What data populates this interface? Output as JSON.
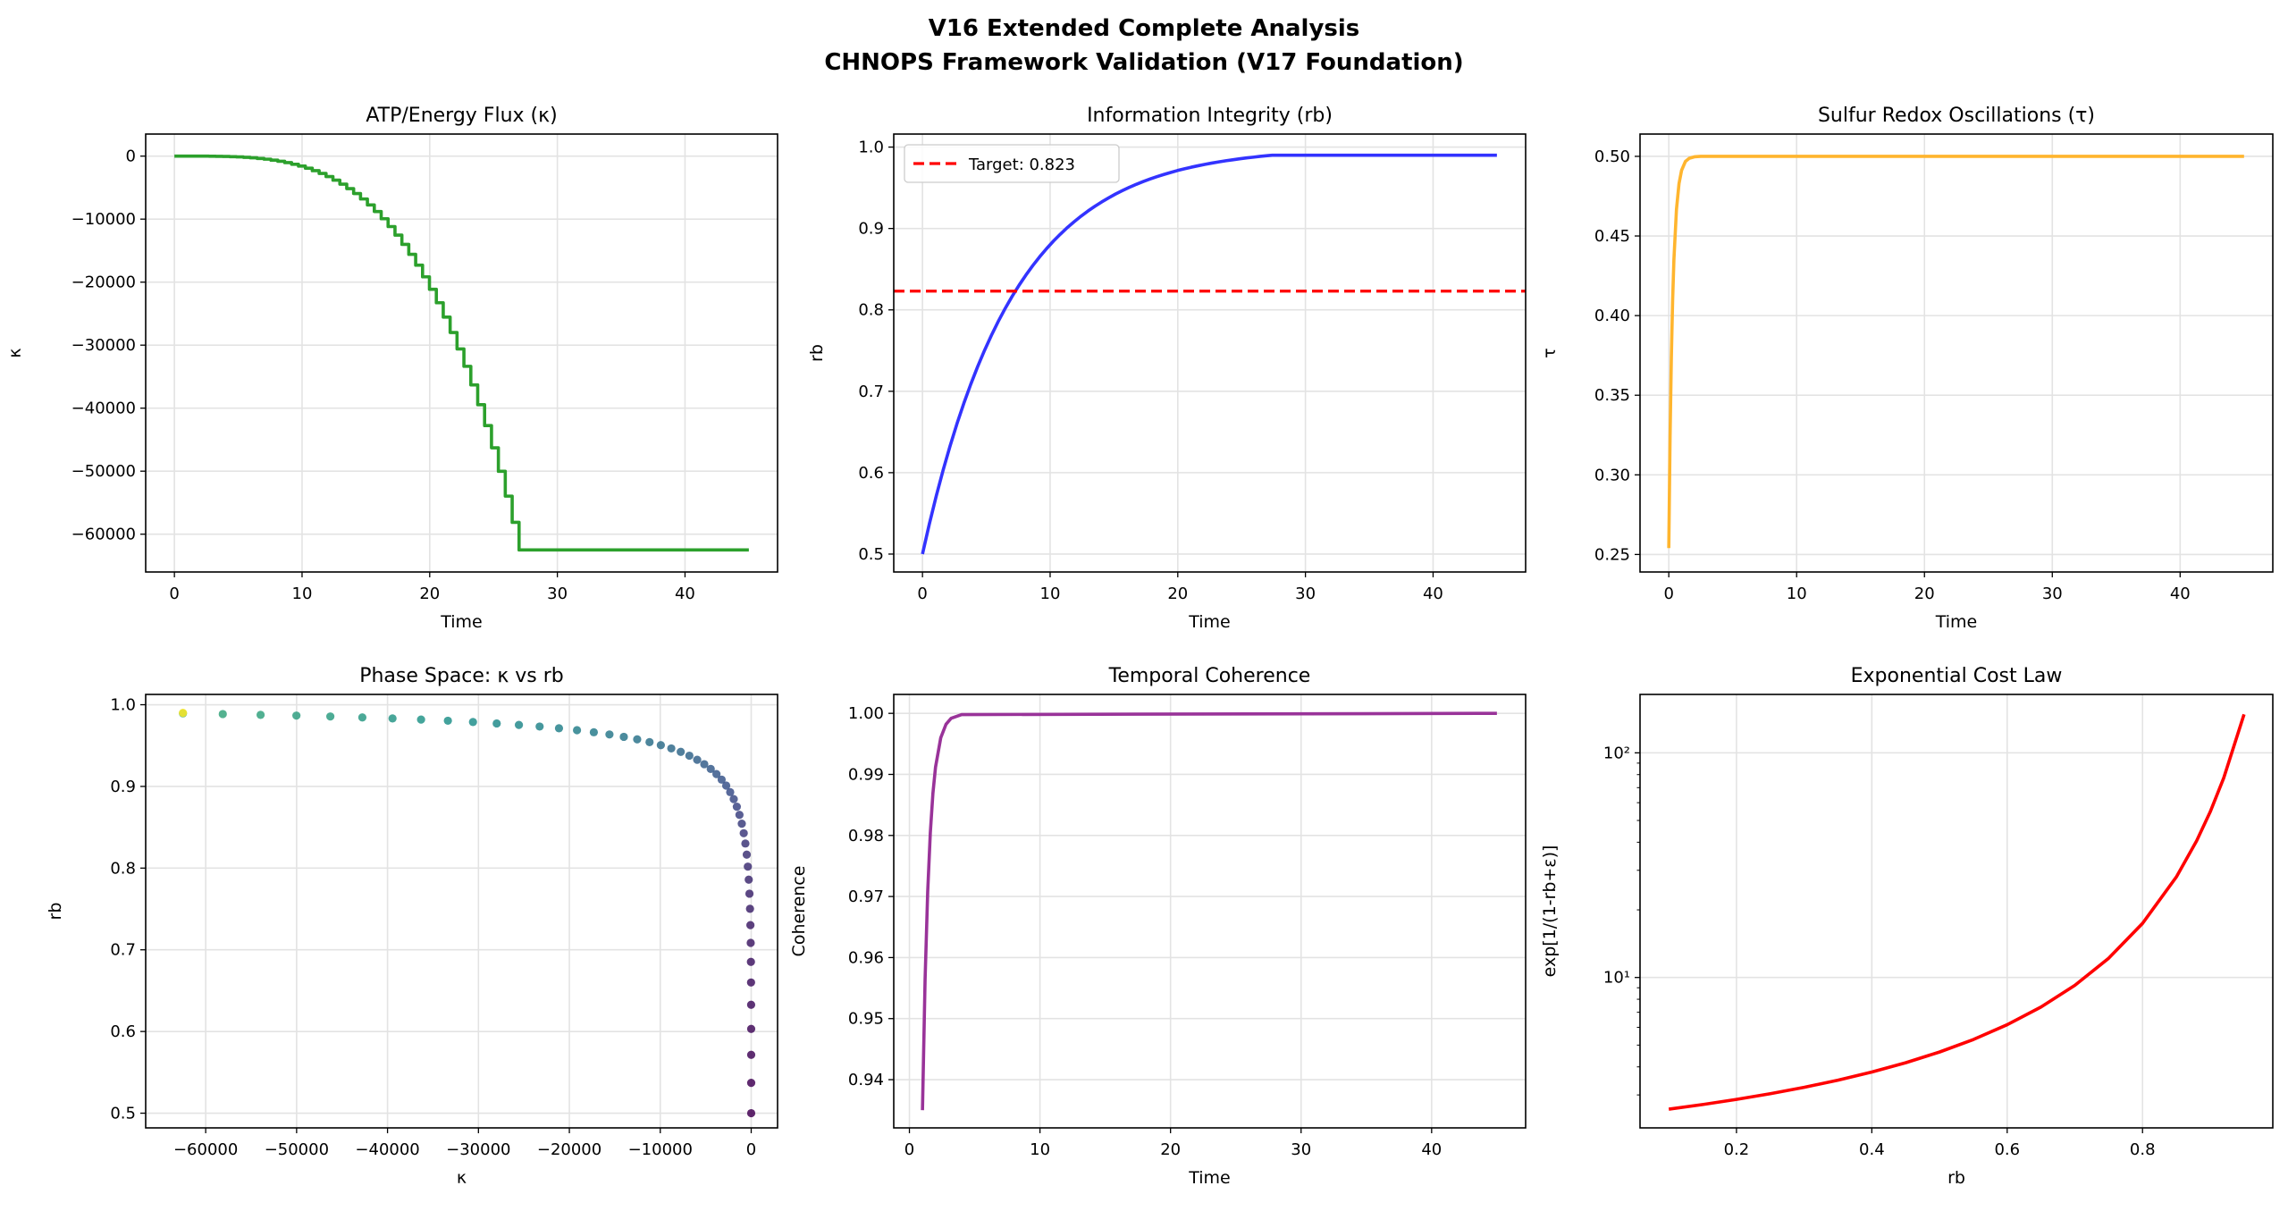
{
  "figure": {
    "title_line1": "V16 Extended Complete Analysis",
    "title_line2": "CHNOPS Framework Validation (V17 Foundation)"
  },
  "chart_data": [
    {
      "type": "line",
      "title": "ATP/Energy Flux (κ)",
      "xlabel": "Time",
      "ylabel": "κ",
      "xlim": [
        -2.25,
        47.25
      ],
      "ylim": [
        -66000,
        3500
      ],
      "grid": true,
      "xticks": [
        0,
        10,
        20,
        30,
        40
      ],
      "xtick_labels": [
        "0",
        "10",
        "20",
        "30",
        "40"
      ],
      "yticks": [
        0,
        -10000,
        -20000,
        -30000,
        -40000,
        -50000,
        -60000
      ],
      "ytick_labels": [
        "0",
        "−10000",
        "−20000",
        "−30000",
        "−40000",
        "−50000",
        "−60000"
      ],
      "series": [
        {
          "style": "step",
          "color": "#2ca02c",
          "x": [
            0,
            0.54,
            1.08,
            1.62,
            2.16,
            2.7,
            3.24,
            3.78,
            4.32,
            4.86,
            5.4,
            5.94,
            6.48,
            7.02,
            7.56,
            8.1,
            8.64,
            9.18,
            9.72,
            10.26,
            10.8,
            11.34,
            11.88,
            12.42,
            12.96,
            13.5,
            14.04,
            14.58,
            15.12,
            15.66,
            16.2,
            16.74,
            17.28,
            17.82,
            18.36,
            18.9,
            19.44,
            19.98,
            20.52,
            21.06,
            21.6,
            22.14,
            22.68,
            23.22,
            23.76,
            24.3,
            24.84,
            25.38,
            25.92,
            26.46,
            27.0,
            45
          ],
          "y": [
            0,
            0,
            0,
            -2,
            -7,
            -16,
            -30,
            -53,
            -85,
            -131,
            -190,
            -269,
            -368,
            -490,
            -640,
            -820,
            -1035,
            -1290,
            -1580,
            -1920,
            -2310,
            -2750,
            -3250,
            -3820,
            -4450,
            -5160,
            -5940,
            -6800,
            -7750,
            -8790,
            -9940,
            -11180,
            -12540,
            -14010,
            -15590,
            -17310,
            -19160,
            -21140,
            -23270,
            -25550,
            -27990,
            -30600,
            -33360,
            -36310,
            -39450,
            -42770,
            -46290,
            -50020,
            -53960,
            -58120,
            -62500,
            -62500
          ]
        }
      ]
    },
    {
      "type": "line",
      "title": "Information Integrity (rb)",
      "xlabel": "Time",
      "ylabel": "rb",
      "xlim": [
        -2.25,
        47.25
      ],
      "ylim": [
        0.478,
        1.016
      ],
      "grid": true,
      "xticks": [
        0,
        10,
        20,
        30,
        40
      ],
      "xtick_labels": [
        "0",
        "10",
        "20",
        "30",
        "40"
      ],
      "yticks": [
        0.5,
        0.6,
        0.7,
        0.8,
        0.9,
        1.0
      ],
      "ytick_labels": [
        "0.5",
        "0.6",
        "0.7",
        "0.8",
        "0.9",
        "1.0"
      ],
      "legend": {
        "position": "upper-left",
        "entries": [
          "Target: 0.823"
        ]
      },
      "series": [
        {
          "style": "line",
          "color": "#3333ff",
          "x": [
            0,
            0.54,
            1.08,
            1.62,
            2.16,
            2.7,
            3.24,
            3.78,
            4.32,
            4.86,
            5.4,
            5.94,
            6.48,
            7.02,
            7.56,
            8.1,
            8.64,
            9.18,
            9.72,
            10.26,
            10.8,
            11.34,
            11.88,
            12.42,
            12.96,
            13.5,
            14.04,
            14.58,
            15.12,
            15.66,
            16.2,
            16.74,
            17.28,
            17.82,
            18.36,
            18.9,
            19.44,
            19.98,
            20.52,
            21.06,
            21.6,
            22.14,
            22.68,
            23.22,
            23.76,
            24.3,
            24.84,
            25.38,
            25.92,
            26.46,
            27.0,
            27.4,
            45
          ],
          "y": [
            0.5,
            0.5371,
            0.5714,
            0.6032,
            0.6327,
            0.66,
            0.6852,
            0.7085,
            0.7302,
            0.7502,
            0.7687,
            0.7859,
            0.8018,
            0.8165,
            0.8301,
            0.8427,
            0.8544,
            0.8652,
            0.8752,
            0.8845,
            0.893,
            0.901,
            0.9083,
            0.9151,
            0.9214,
            0.9272,
            0.9326,
            0.9376,
            0.9423,
            0.9465,
            0.9505,
            0.9542,
            0.9576,
            0.9607,
            0.9636,
            0.9663,
            0.9688,
            0.9712,
            0.9733,
            0.9753,
            0.9771,
            0.9788,
            0.9804,
            0.9818,
            0.9832,
            0.9844,
            0.9856,
            0.9867,
            0.9876,
            0.9886,
            0.9894,
            0.99,
            0.99
          ]
        },
        {
          "name": "Target: 0.823",
          "style": "hline-dashed",
          "color": "#ff0000",
          "y": 0.823
        }
      ]
    },
    {
      "type": "line",
      "title": "Sulfur Redox Oscillations (τ)",
      "xlabel": "Time",
      "ylabel": "τ",
      "xlim": [
        -2.25,
        47.25
      ],
      "ylim": [
        0.239,
        0.514
      ],
      "grid": true,
      "xticks": [
        0,
        10,
        20,
        30,
        40
      ],
      "xtick_labels": [
        "0",
        "10",
        "20",
        "30",
        "40"
      ],
      "yticks": [
        0.25,
        0.3,
        0.35,
        0.4,
        0.45,
        0.5
      ],
      "ytick_labels": [
        "0.25",
        "0.30",
        "0.35",
        "0.40",
        "0.45",
        "0.50"
      ],
      "series": [
        {
          "style": "line",
          "color": "#ffb52e",
          "x": [
            0,
            0.1,
            0.2,
            0.3,
            0.4,
            0.6,
            0.8,
            1.0,
            1.3,
            1.6,
            2.0,
            2.5,
            45
          ],
          "y": [
            0.254,
            0.3237,
            0.3737,
            0.4095,
            0.4352,
            0.4667,
            0.4829,
            0.4912,
            0.4968,
            0.4988,
            0.4997,
            0.5,
            0.5
          ]
        }
      ]
    },
    {
      "type": "scatter",
      "title": "Phase Space: κ vs rb",
      "xlabel": "κ",
      "ylabel": "rb",
      "xlim": [
        -66600,
        2900
      ],
      "ylim": [
        0.482,
        1.0126
      ],
      "grid": true,
      "colormap": "viridis",
      "xticks": [
        -60000,
        -50000,
        -40000,
        -30000,
        -20000,
        -10000,
        0
      ],
      "xtick_labels": [
        "−60000",
        "−50000",
        "−40000",
        "−30000",
        "−20000",
        "−10000",
        "0"
      ],
      "yticks": [
        0.5,
        0.6,
        0.7,
        0.8,
        0.9,
        1.0
      ],
      "ytick_labels": [
        "0.5",
        "0.6",
        "0.7",
        "0.8",
        "0.9",
        "1.0"
      ],
      "series": [
        {
          "style": "scatter",
          "x": [
            0,
            0,
            0,
            -2,
            -7,
            -16,
            -30,
            -53,
            -85,
            -131,
            -190,
            -269,
            -368,
            -490,
            -640,
            -820,
            -1035,
            -1290,
            -1580,
            -1920,
            -2310,
            -2750,
            -3250,
            -3820,
            -4450,
            -5160,
            -5940,
            -6800,
            -7750,
            -8790,
            -9940,
            -11180,
            -12540,
            -14010,
            -15590,
            -17310,
            -19160,
            -21140,
            -23270,
            -25550,
            -27990,
            -30600,
            -33360,
            -36310,
            -39450,
            -42770,
            -46290,
            -50020,
            -53960,
            -58120,
            -62500,
            -62500
          ],
          "y": [
            0.5,
            0.5371,
            0.5714,
            0.6032,
            0.6327,
            0.66,
            0.6852,
            0.7085,
            0.7302,
            0.7502,
            0.7687,
            0.7859,
            0.8018,
            0.8165,
            0.8301,
            0.8427,
            0.8544,
            0.8652,
            0.8752,
            0.8845,
            0.893,
            0.901,
            0.9083,
            0.9151,
            0.9214,
            0.9272,
            0.9326,
            0.9376,
            0.9423,
            0.9465,
            0.9505,
            0.9542,
            0.9576,
            0.9607,
            0.9636,
            0.9663,
            0.9688,
            0.9712,
            0.9733,
            0.9753,
            0.9771,
            0.9788,
            0.9804,
            0.9818,
            0.9832,
            0.9844,
            0.9856,
            0.9867,
            0.9876,
            0.9886,
            0.9894,
            0.99
          ],
          "c": [
            0,
            0.54,
            1.08,
            1.62,
            2.16,
            2.7,
            3.24,
            3.78,
            4.32,
            4.86,
            5.4,
            5.94,
            6.48,
            7.02,
            7.56,
            8.1,
            8.64,
            9.18,
            9.72,
            10.26,
            10.8,
            11.34,
            11.88,
            12.42,
            12.96,
            13.5,
            14.04,
            14.58,
            15.12,
            15.66,
            16.2,
            16.74,
            17.28,
            17.82,
            18.36,
            18.9,
            19.44,
            19.98,
            20.52,
            21.06,
            21.6,
            22.14,
            22.68,
            23.22,
            23.76,
            24.3,
            24.84,
            25.38,
            25.92,
            26.46,
            27.0,
            45
          ]
        }
      ]
    },
    {
      "type": "line",
      "title": "Temporal Coherence",
      "xlabel": "Time",
      "ylabel": "Coherence",
      "xlim": [
        -1.2,
        47.2
      ],
      "ylim": [
        0.9321,
        1.0031
      ],
      "grid": true,
      "xticks": [
        0,
        10,
        20,
        30,
        40
      ],
      "xtick_labels": [
        "0",
        "10",
        "20",
        "30",
        "40"
      ],
      "yticks": [
        0.94,
        0.95,
        0.96,
        0.97,
        0.98,
        0.99,
        1.0
      ],
      "ytick_labels": [
        "0.94",
        "0.95",
        "0.96",
        "0.97",
        "0.98",
        "0.99",
        "1.00"
      ],
      "series": [
        {
          "style": "line",
          "color": "#993399",
          "x": [
            1,
            1.2,
            1.4,
            1.6,
            1.8,
            2.0,
            2.4,
            2.8,
            3.2,
            4,
            45
          ],
          "y": [
            0.935,
            0.9564,
            0.9708,
            0.9804,
            0.9869,
            0.9912,
            0.996,
            0.9982,
            0.9992,
            0.9998,
            1.0
          ]
        }
      ]
    },
    {
      "type": "line",
      "title": "Exponential Cost Law",
      "xlabel": "rb",
      "ylabel": "exp[1/(1-rb+ε)]",
      "xlim": [
        0.0575,
        0.9925
      ],
      "ylim": [
        2.14,
        182
      ],
      "yscale": "log",
      "grid": true,
      "xticks": [
        0.2,
        0.4,
        0.6,
        0.8
      ],
      "xtick_labels": [
        "0.2",
        "0.4",
        "0.6",
        "0.8"
      ],
      "yticks": [
        10,
        100
      ],
      "ytick_labels": [
        "10¹",
        "10²"
      ],
      "series": [
        {
          "style": "line",
          "color": "#ff0000",
          "x": [
            0.1,
            0.15,
            0.2,
            0.25,
            0.3,
            0.35,
            0.4,
            0.45,
            0.5,
            0.55,
            0.6,
            0.65,
            0.7,
            0.75,
            0.8,
            0.85,
            0.88,
            0.9,
            0.92,
            0.95
          ],
          "y": [
            2.592,
            2.718,
            2.865,
            3.038,
            3.243,
            3.49,
            3.794,
            4.173,
            4.657,
            5.294,
            6.161,
            7.389,
            9.227,
            12.18,
            17.41,
            28.03,
            40.6,
            54.6,
            77.3,
            148.4
          ]
        }
      ]
    }
  ]
}
